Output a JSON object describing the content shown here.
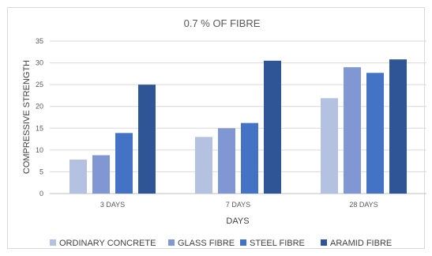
{
  "chart_data": {
    "type": "bar",
    "title": "0.7 % OF FIBRE",
    "xlabel": "DAYS",
    "ylabel": "COMPRESSIVE STRENGTH",
    "ylim": [
      0,
      35
    ],
    "yticks": [
      0,
      5,
      10,
      15,
      20,
      25,
      30,
      35
    ],
    "grid": true,
    "legend_position": "bottom",
    "categories": [
      "3 DAYS",
      "7 DAYS",
      "28 DAYS"
    ],
    "series": [
      {
        "name": "ORDINARY CONCRETE",
        "color": "#b4c1e0",
        "values": [
          7.8,
          13.0,
          21.9
        ]
      },
      {
        "name": "GLASS FIBRE",
        "color": "#8197d3",
        "values": [
          8.8,
          15.0,
          29.0
        ]
      },
      {
        "name": "STEEL FIBRE",
        "color": "#4472c4",
        "values": [
          13.9,
          16.2,
          27.7
        ]
      },
      {
        "name": "ARAMID FIBRE",
        "color": "#2f5597",
        "values": [
          25.0,
          30.5,
          30.8
        ]
      }
    ]
  }
}
